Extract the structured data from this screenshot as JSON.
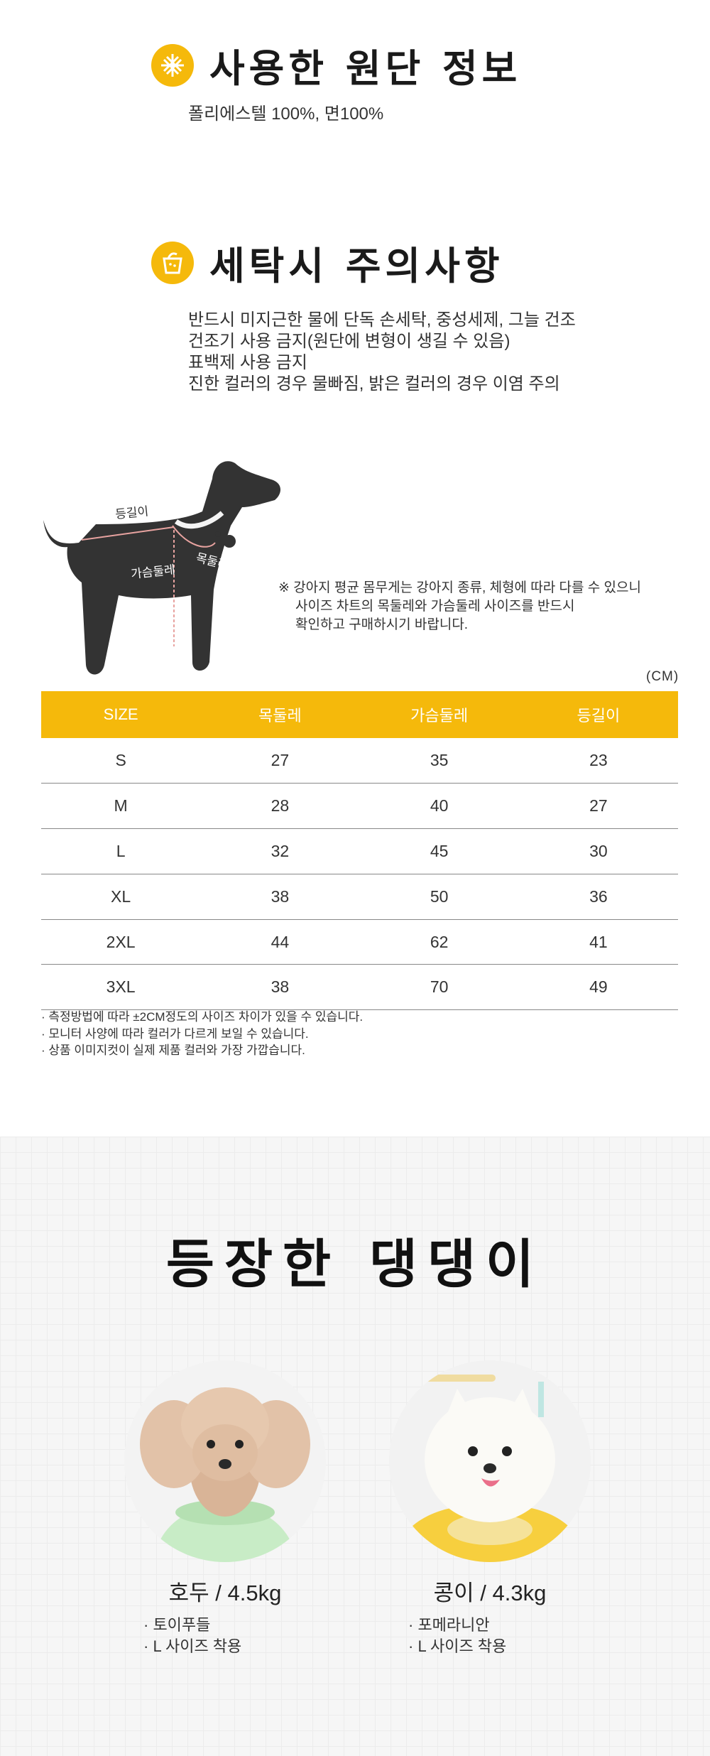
{
  "fabric": {
    "title": "사용한 원단 정보",
    "text": "폴리에스텔 100%, 면100%",
    "icon": "fabric-weave-icon"
  },
  "washing": {
    "title": "세탁시 주의사항",
    "icon": "wash-basin-icon",
    "lines": [
      "반드시 미지근한 물에 단독 손세탁, 중성세제, 그늘 건조",
      "건조기 사용 금지(원단에 변형이 생길 수 있음)",
      "표백제 사용 금지",
      "진한 컬러의 경우 물빠짐, 밝은 컬러의 경우 이염 주의"
    ]
  },
  "dog_diagram": {
    "label_back": "등길이",
    "label_neck": "목둘레",
    "label_chest": "가슴둘레",
    "note_line1": "※ 강아지 평균 몸무게는 강아지 종류, 체형에 따라 다를 수 있으니",
    "note_line2": "사이즈 차트의 목둘레와 가슴둘레 사이즈를 반드시",
    "note_line3": "확인하고 구매하시기 바랍니다."
  },
  "size_chart": {
    "unit": "(CM)",
    "header_color": "#f5b90b",
    "headers": [
      "SIZE",
      "목둘레",
      "가슴둘레",
      "등길이"
    ],
    "rows": [
      [
        "S",
        "27",
        "35",
        "23"
      ],
      [
        "M",
        "28",
        "40",
        "27"
      ],
      [
        "L",
        "32",
        "45",
        "30"
      ],
      [
        "XL",
        "38",
        "50",
        "36"
      ],
      [
        "2XL",
        "44",
        "62",
        "41"
      ],
      [
        "3XL",
        "38",
        "70",
        "49"
      ]
    ]
  },
  "notes": [
    "· 측정방법에 따라 ±2CM정도의 사이즈 차이가 있을 수 있습니다.",
    "· 모니터 사양에 따라 컬러가 다르게 보일 수 있습니다.",
    "· 상품 이미지컷이 실제 제품 컬러와 가장 가깝습니다."
  ],
  "models": {
    "title": "등장한 댕댕이",
    "pets": [
      {
        "name": "호두 / 4.5kg",
        "breed": "· 토이푸들",
        "size": "· L 사이즈 착용"
      },
      {
        "name": "콩이 / 4.3kg",
        "breed": "· 포메라니안",
        "size": "· L 사이즈 착용"
      }
    ]
  }
}
